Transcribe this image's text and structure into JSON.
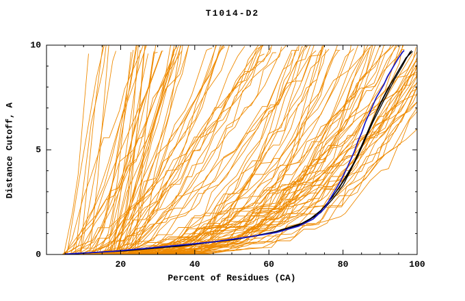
{
  "chart_data": {
    "type": "line",
    "title": "T1014-D2",
    "xlabel": "Percent of Residues (CA)",
    "ylabel": "Distance Cutoff, A",
    "xlim": [
      0,
      100
    ],
    "ylim": [
      0,
      10
    ],
    "grid": false,
    "legend": "none",
    "background": "#ffffff",
    "axis_color": "#000000",
    "x_ticks": [
      {
        "v": 0,
        "label": ""
      },
      {
        "v": 20,
        "label": "20"
      },
      {
        "v": 40,
        "label": "40"
      },
      {
        "v": 60,
        "label": "60"
      },
      {
        "v": 80,
        "label": "80"
      },
      {
        "v": 100,
        "label": "100"
      }
    ],
    "y_ticks": [
      {
        "v": 0,
        "label": "0"
      },
      {
        "v": 5,
        "label": "5"
      },
      {
        "v": 10,
        "label": "10"
      }
    ],
    "x_minor_step": 5,
    "y_minor_step": 1,
    "series": [
      {
        "name": "model-black-1",
        "color": "#000000",
        "width": 1.3,
        "points": [
          [
            6,
            0.02
          ],
          [
            20,
            0.18
          ],
          [
            35,
            0.42
          ],
          [
            50,
            0.7
          ],
          [
            60,
            1.0
          ],
          [
            68,
            1.4
          ],
          [
            73,
            1.9
          ],
          [
            76,
            2.5
          ],
          [
            79,
            3.2
          ],
          [
            82,
            4.0
          ],
          [
            84,
            4.8
          ],
          [
            86,
            5.6
          ],
          [
            88,
            6.4
          ],
          [
            90,
            7.2
          ],
          [
            92,
            7.9
          ],
          [
            94,
            8.5
          ],
          [
            96,
            9.1
          ],
          [
            98,
            9.6
          ],
          [
            98.5,
            9.75
          ]
        ]
      },
      {
        "name": "model-black-2",
        "color": "#000000",
        "width": 1.3,
        "points": [
          [
            7,
            0.03
          ],
          [
            22,
            0.2
          ],
          [
            38,
            0.45
          ],
          [
            52,
            0.75
          ],
          [
            62,
            1.1
          ],
          [
            70,
            1.55
          ],
          [
            74,
            2.1
          ],
          [
            77,
            2.7
          ],
          [
            80,
            3.5
          ],
          [
            83,
            4.4
          ],
          [
            85,
            5.2
          ],
          [
            87,
            6.0
          ],
          [
            89,
            6.8
          ],
          [
            91,
            7.5
          ],
          [
            93,
            8.2
          ],
          [
            95,
            8.8
          ],
          [
            97,
            9.4
          ],
          [
            98.8,
            9.7
          ]
        ]
      },
      {
        "name": "model-black-3",
        "color": "#000000",
        "width": 1.3,
        "points": [
          [
            6,
            0.02
          ],
          [
            21,
            0.17
          ],
          [
            36,
            0.4
          ],
          [
            51,
            0.72
          ],
          [
            61,
            1.05
          ],
          [
            69,
            1.45
          ],
          [
            74,
            2.0
          ],
          [
            77,
            2.6
          ],
          [
            80,
            3.3
          ],
          [
            82,
            4.0
          ],
          [
            84,
            4.7
          ],
          [
            86,
            5.5
          ],
          [
            88,
            6.3
          ],
          [
            90,
            7.0
          ],
          [
            92,
            7.7
          ],
          [
            94,
            8.4
          ],
          [
            96,
            9.0
          ],
          [
            97.5,
            9.5
          ],
          [
            98.2,
            9.7
          ]
        ]
      },
      {
        "name": "model-blue",
        "color": "#1515c8",
        "width": 1.7,
        "points": [
          [
            5,
            0.02
          ],
          [
            18,
            0.15
          ],
          [
            30,
            0.35
          ],
          [
            45,
            0.6
          ],
          [
            55,
            0.85
          ],
          [
            62,
            1.05
          ],
          [
            68,
            1.35
          ],
          [
            72,
            1.7
          ],
          [
            75,
            2.2
          ],
          [
            77,
            2.8
          ],
          [
            79,
            3.4
          ],
          [
            81,
            4.1
          ],
          [
            83,
            4.9
          ],
          [
            84,
            5.4
          ],
          [
            85,
            5.8
          ],
          [
            86,
            6.3
          ],
          [
            87,
            6.7
          ],
          [
            88,
            7.1
          ],
          [
            89,
            7.5
          ],
          [
            90,
            7.8
          ],
          [
            91,
            8.1
          ],
          [
            92,
            8.5
          ],
          [
            93,
            8.8
          ],
          [
            94,
            9.1
          ],
          [
            95,
            9.4
          ],
          [
            96,
            9.65
          ],
          [
            96.5,
            9.75
          ]
        ]
      }
    ],
    "orange_ensemble": {
      "name": "prediction-curves",
      "color": "#ef8a00",
      "width": 0.9,
      "count": 120,
      "seed": 7,
      "x_start_range": [
        4,
        24
      ],
      "steep_fraction": 0.45,
      "description": "~120 overlapping orange prediction curves, monotonically increasing from ~0 near x=5-25 up to the 10 A cutoff; mixture of steep early risers and gradual curves climbing between x=60 and x=100"
    }
  }
}
